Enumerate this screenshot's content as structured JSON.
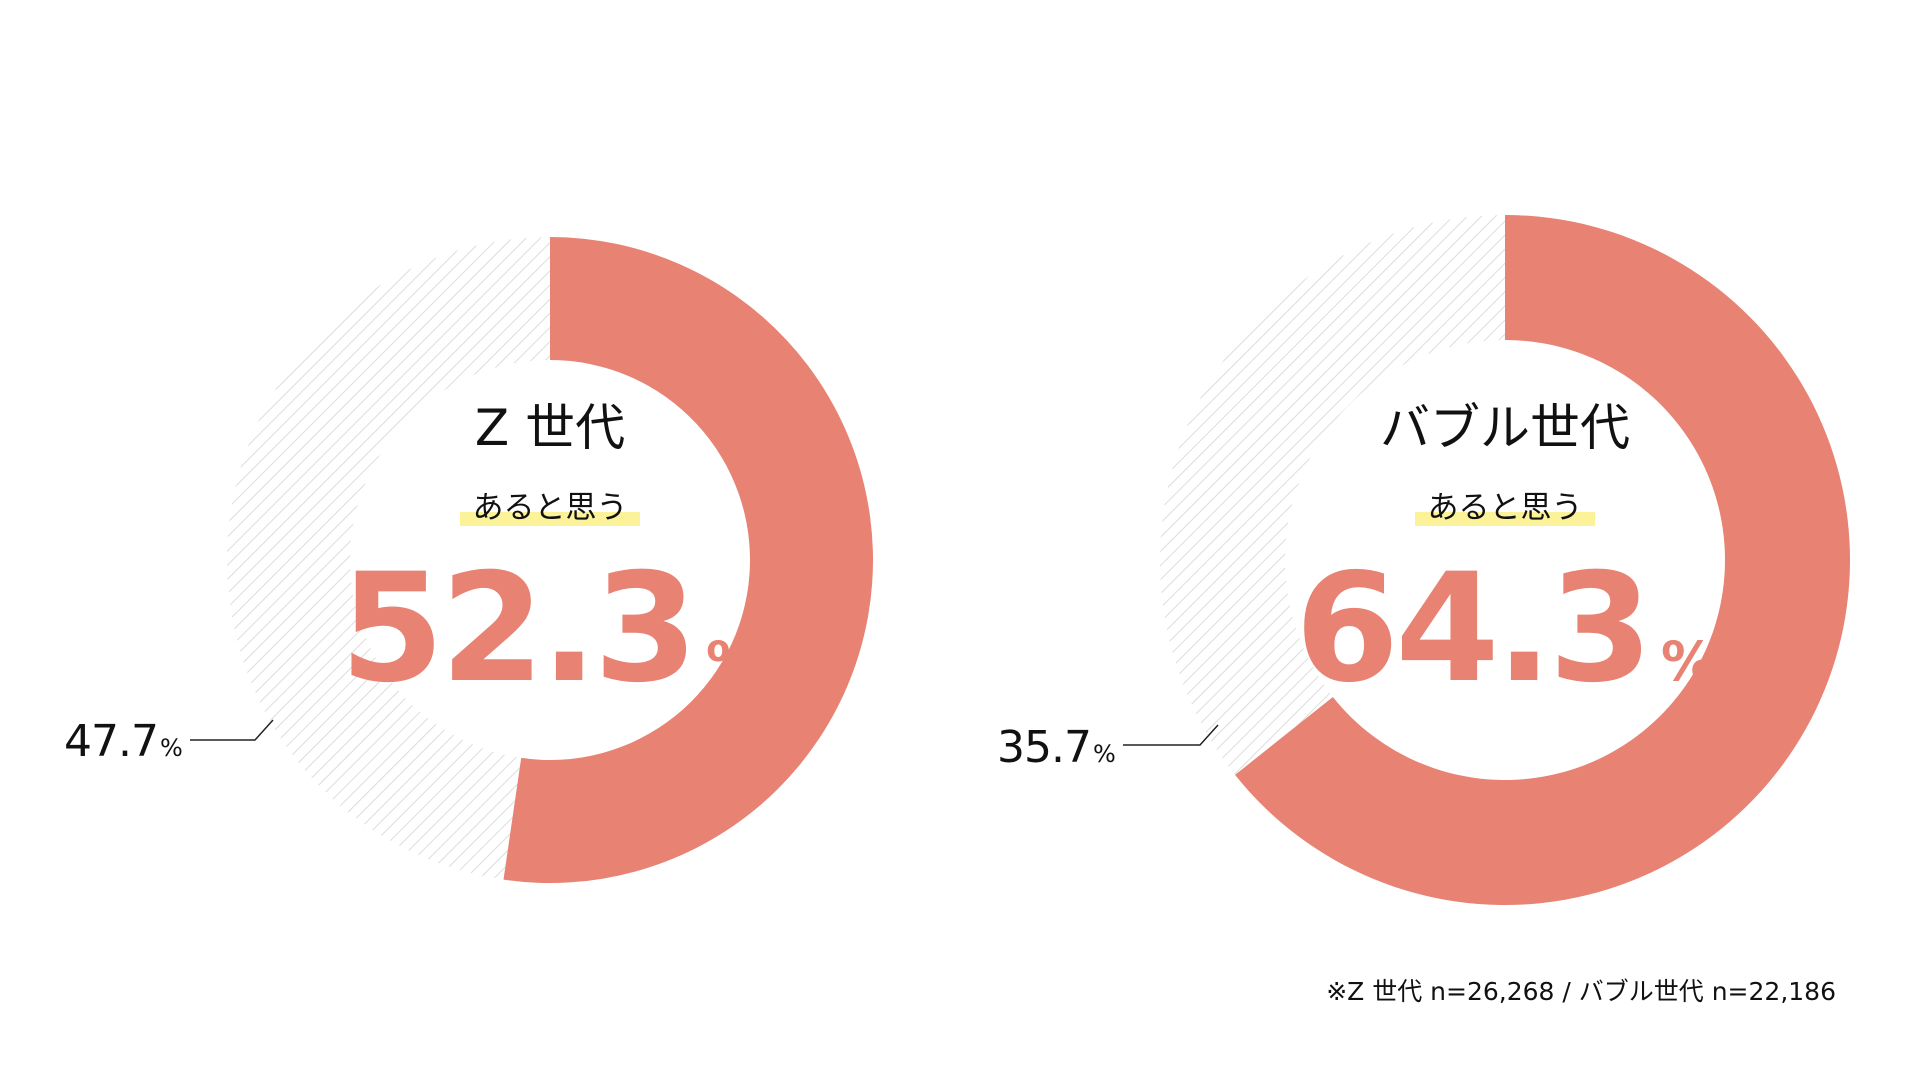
{
  "colors": {
    "main": "#e88273",
    "remainder_hatch": "#d4d4d4",
    "highlight": "#fbf29a",
    "text": "#111111"
  },
  "chart_data": [
    {
      "type": "pie",
      "title": "Z 世代",
      "label": "あると思う",
      "highlight_value": "52.3",
      "highlight_unit": "%",
      "slices": [
        {
          "label": "あると思う",
          "value": 52.3
        },
        {
          "label": "",
          "value": 47.7
        }
      ],
      "other_value": "47.7",
      "other_unit": "%"
    },
    {
      "type": "pie",
      "title": "バブル世代",
      "label": "あると思う",
      "highlight_value": "64.3",
      "highlight_unit": "%",
      "slices": [
        {
          "label": "あると思う",
          "value": 64.3
        },
        {
          "label": "",
          "value": 35.7
        }
      ],
      "other_value": "35.7",
      "other_unit": "%"
    }
  ],
  "footnote": "※Z 世代 n=26,268 / バブル世代 n=22,186"
}
